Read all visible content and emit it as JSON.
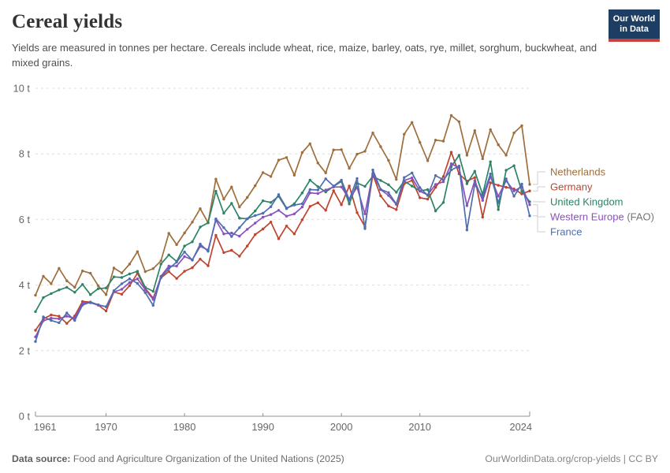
{
  "header": {
    "title": "Cereal yields",
    "subtitle": "Yields are measured in tonnes per hectare. Cereals include wheat, rice, maize, barley, oats, rye, millet, sorghum, buckwheat, and mixed grains."
  },
  "logo": {
    "line1": "Our World",
    "line2": "in Data",
    "bg": "#1d3d63",
    "bar": "#c9413d"
  },
  "footer": {
    "source_label": "Data source:",
    "source_text": "Food and Agriculture Organization of the United Nations (2025)",
    "right_text": "OurWorldinData.org/crop-yields | CC BY"
  },
  "chart_data": {
    "type": "line",
    "title": "Cereal yields",
    "xlabel": "",
    "ylabel": "tonnes per hectare",
    "unit": "t",
    "ylim": [
      0,
      10
    ],
    "y_ticks": [
      0,
      2,
      4,
      6,
      8,
      10
    ],
    "y_tick_suffix": " t",
    "x_ticks": [
      1961,
      1970,
      1980,
      1990,
      2000,
      2010,
      2024
    ],
    "grid": "dashed-horizontal",
    "legend_position": "right-of-lines",
    "colors": {
      "grid": "#dedede",
      "axis": "#8f8f8f",
      "tick_label": "#666666",
      "connector": "#cfcfcf",
      "suffix_muted": "#757575"
    },
    "x": [
      1961,
      1962,
      1963,
      1964,
      1965,
      1966,
      1967,
      1968,
      1969,
      1970,
      1971,
      1972,
      1973,
      1974,
      1975,
      1976,
      1977,
      1978,
      1979,
      1980,
      1981,
      1982,
      1983,
      1984,
      1985,
      1986,
      1987,
      1988,
      1989,
      1990,
      1991,
      1992,
      1993,
      1994,
      1995,
      1996,
      1997,
      1998,
      1999,
      2000,
      2001,
      2002,
      2003,
      2004,
      2005,
      2006,
      2007,
      2008,
      2009,
      2010,
      2011,
      2012,
      2013,
      2014,
      2015,
      2016,
      2017,
      2018,
      2019,
      2020,
      2021,
      2022,
      2023,
      2024
    ],
    "series": [
      {
        "name": "Netherlands",
        "legend_label": "Netherlands",
        "suffix": "",
        "color": "#9F6E3C",
        "values": [
          3.69,
          4.27,
          4.04,
          4.51,
          4.13,
          3.93,
          4.43,
          4.36,
          3.98,
          3.71,
          4.52,
          4.37,
          4.64,
          5.02,
          4.41,
          4.5,
          4.74,
          5.58,
          5.23,
          5.59,
          5.92,
          6.33,
          5.9,
          7.23,
          6.62,
          6.99,
          6.38,
          6.67,
          7.03,
          7.43,
          7.31,
          7.81,
          7.89,
          7.35,
          8.04,
          8.31,
          7.72,
          7.42,
          8.12,
          8.13,
          7.56,
          7.99,
          8.08,
          8.64,
          8.22,
          7.8,
          7.22,
          8.6,
          8.96,
          8.35,
          7.79,
          8.42,
          8.39,
          9.17,
          8.98,
          7.96,
          8.71,
          7.85,
          8.74,
          8.28,
          7.96,
          8.64,
          8.86,
          7.07
        ]
      },
      {
        "name": "Germany",
        "legend_label": "Germany",
        "suffix": "",
        "color": "#C0432E",
        "values": [
          2.62,
          2.97,
          3.09,
          3.05,
          2.83,
          3.06,
          3.5,
          3.48,
          3.39,
          3.21,
          3.79,
          3.72,
          3.98,
          4.36,
          3.9,
          3.6,
          4.22,
          4.41,
          4.2,
          4.42,
          4.53,
          4.79,
          4.59,
          5.52,
          4.99,
          5.06,
          4.88,
          5.19,
          5.54,
          5.71,
          5.92,
          5.41,
          5.8,
          5.56,
          5.99,
          6.4,
          6.51,
          6.28,
          6.88,
          6.45,
          7.02,
          6.21,
          5.78,
          7.37,
          6.72,
          6.41,
          6.3,
          7.09,
          7.19,
          6.66,
          6.62,
          6.98,
          7.31,
          8.05,
          7.39,
          7.17,
          7.28,
          6.07,
          7.12,
          7.04,
          6.98,
          6.93,
          6.78,
          6.87
        ]
      },
      {
        "name": "United Kingdom",
        "legend_label": "United Kingdom",
        "suffix": "",
        "color": "#2C8465",
        "values": [
          3.19,
          3.62,
          3.74,
          3.85,
          3.93,
          3.78,
          4.02,
          3.71,
          3.89,
          3.91,
          4.25,
          4.23,
          4.34,
          4.42,
          3.93,
          3.81,
          4.64,
          4.92,
          4.72,
          5.19,
          5.32,
          5.77,
          5.9,
          6.86,
          6.19,
          6.49,
          6.04,
          6.02,
          6.26,
          6.57,
          6.52,
          6.71,
          6.33,
          6.48,
          6.81,
          7.2,
          7.0,
          6.84,
          7.01,
          7.16,
          6.47,
          7.11,
          7.01,
          7.32,
          7.19,
          7.06,
          6.83,
          7.17,
          7.02,
          6.87,
          6.91,
          6.26,
          6.52,
          7.61,
          7.96,
          7.09,
          7.47,
          6.76,
          7.76,
          6.3,
          7.5,
          7.64,
          6.86,
          6.54
        ]
      },
      {
        "name": "Western Europe",
        "legend_label": "Western Europe",
        "suffix": " (FAO)",
        "color": "#8C50BC",
        "values": [
          2.42,
          2.91,
          2.99,
          2.97,
          3.05,
          2.98,
          3.45,
          3.46,
          3.39,
          3.34,
          3.79,
          3.87,
          4.08,
          4.19,
          3.86,
          3.56,
          4.27,
          4.58,
          4.58,
          4.87,
          4.77,
          5.18,
          5.07,
          5.98,
          5.56,
          5.59,
          5.49,
          5.7,
          5.89,
          6.07,
          6.15,
          6.28,
          6.1,
          6.17,
          6.38,
          6.81,
          6.79,
          6.9,
          6.99,
          6.99,
          6.62,
          6.98,
          6.17,
          7.4,
          6.91,
          6.73,
          6.46,
          7.19,
          7.27,
          6.86,
          6.75,
          7.07,
          7.15,
          7.7,
          7.58,
          6.42,
          7.18,
          6.58,
          7.31,
          6.71,
          7.18,
          6.87,
          7.0,
          6.45
        ]
      },
      {
        "name": "France",
        "legend_label": "France",
        "suffix": "",
        "color": "#4F6DB1",
        "values": [
          2.28,
          3.03,
          2.92,
          2.85,
          3.15,
          2.92,
          3.39,
          3.48,
          3.4,
          3.34,
          3.83,
          4.04,
          4.19,
          4.05,
          3.77,
          3.38,
          4.24,
          4.5,
          4.7,
          5.01,
          4.76,
          5.25,
          5.03,
          6.02,
          5.75,
          5.48,
          5.75,
          6.02,
          6.12,
          6.19,
          6.39,
          6.76,
          6.35,
          6.44,
          6.48,
          6.91,
          6.9,
          7.24,
          7.02,
          7.2,
          6.6,
          7.25,
          5.72,
          7.51,
          6.92,
          6.82,
          6.47,
          7.28,
          7.42,
          6.97,
          6.73,
          7.34,
          7.21,
          7.51,
          7.63,
          5.68,
          7.07,
          6.68,
          7.39,
          6.51,
          7.24,
          6.71,
          7.08,
          6.11
        ]
      }
    ]
  }
}
